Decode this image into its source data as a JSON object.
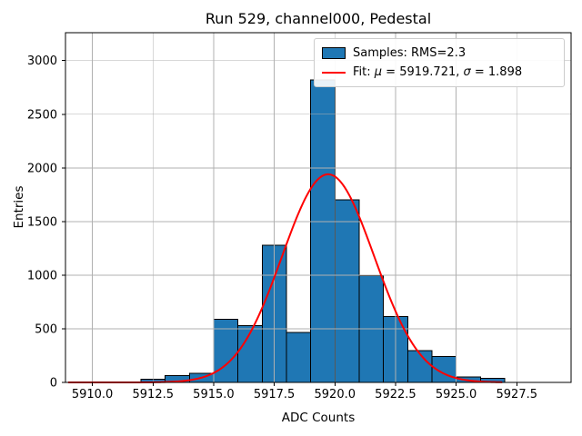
{
  "chart_data": {
    "type": "bar",
    "subtype": "histogram-with-gaussian-fit",
    "title": "Run 529, channel000, Pedestal",
    "xlabel": "ADC Counts",
    "ylabel": "Entries",
    "bin_edges": [
      5912,
      5913,
      5914,
      5915,
      5916,
      5917,
      5918,
      5919,
      5920,
      5921,
      5922,
      5923,
      5924,
      5925,
      5926,
      5927
    ],
    "counts": [
      30,
      65,
      85,
      590,
      530,
      1280,
      465,
      2820,
      1700,
      995,
      615,
      295,
      240,
      50,
      38
    ],
    "fit": {
      "type": "gaussian",
      "mu": 5919.721,
      "sigma": 1.898,
      "amplitude": 1940,
      "x_start": 5909.0,
      "x_end": 5926.9
    },
    "xlim": [
      5908.89,
      5929.74
    ],
    "ylim": [
      0,
      3260
    ],
    "x_ticks": {
      "values": [
        5910.0,
        5912.5,
        5915.0,
        5917.5,
        5920.0,
        5922.5,
        5925.0,
        5927.5
      ],
      "labels": [
        "5910.0",
        "5912.5",
        "5915.0",
        "5917.5",
        "5920.0",
        "5922.5",
        "5925.0",
        "5927.5"
      ]
    },
    "y_ticks": {
      "values": [
        0,
        500,
        1000,
        1500,
        2000,
        2500,
        3000
      ],
      "labels": [
        "0",
        "500",
        "1000",
        "1500",
        "2000",
        "2500",
        "3000"
      ]
    },
    "grid": true,
    "legend": {
      "position": "upper right",
      "entries": [
        {
          "swatch": "patch",
          "color": "#1f77b4",
          "edge_color": "#000000",
          "parts": [
            {
              "text": "Samples: RMS=2.3",
              "italic": false
            }
          ]
        },
        {
          "swatch": "line",
          "color": "#ff0000",
          "parts": [
            {
              "text": "Fit: ",
              "italic": false
            },
            {
              "text": "μ",
              "italic": true
            },
            {
              "text": " = 5919.721, ",
              "italic": false
            },
            {
              "text": "σ",
              "italic": true
            },
            {
              "text": " = 1.898",
              "italic": false
            }
          ]
        }
      ]
    },
    "colors": {
      "bar_fill": "#1f77b4",
      "bar_edge": "#000000",
      "fit_line": "#ff0000",
      "grid": "#b0b0b0",
      "spine": "#000000",
      "text": "#000000",
      "background": "#ffffff"
    }
  }
}
